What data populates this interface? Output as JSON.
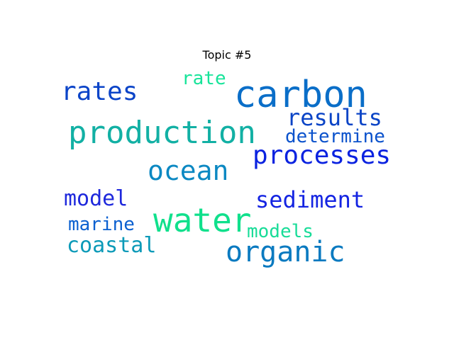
{
  "chart_data": {
    "type": "wordcloud",
    "title": "Topic #5",
    "words": [
      {
        "text": "carbon",
        "color": "#0a6ec8"
      },
      {
        "text": "production",
        "color": "#12b0a4"
      },
      {
        "text": "water",
        "color": "#10e08c"
      },
      {
        "text": "organic",
        "color": "#0a7ac0"
      },
      {
        "text": "processes",
        "color": "#0a22e0"
      },
      {
        "text": "ocean",
        "color": "#0b88c2"
      },
      {
        "text": "rates",
        "color": "#0b44c8"
      },
      {
        "text": "results",
        "color": "#0b44c6"
      },
      {
        "text": "sediment",
        "color": "#1424e2"
      },
      {
        "text": "model",
        "color": "#1e28dc"
      },
      {
        "text": "coastal",
        "color": "#0c9ab8"
      },
      {
        "text": "marine",
        "color": "#0b60d0"
      },
      {
        "text": "determine",
        "color": "#0b52cc"
      },
      {
        "text": "models",
        "color": "#18dc98"
      },
      {
        "text": "rate",
        "color": "#18e49a"
      }
    ]
  }
}
